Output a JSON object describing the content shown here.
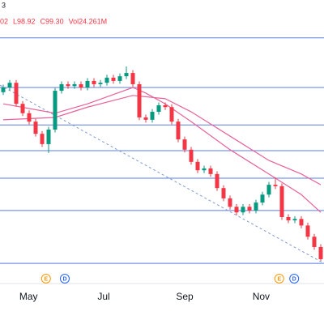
{
  "chart_data": {
    "type": "candlestick",
    "header": {
      "line1": "3",
      "items": [
        "02",
        "L98.92",
        "C99.30",
        "Vol24.261M"
      ]
    },
    "up_color": "#089981",
    "down_color": "#f23645",
    "open": [
      135.0,
      136.0,
      137.0,
      132.5,
      130.5,
      128.7,
      126.1,
      123.9,
      127.0,
      135.3,
      136.7,
      136.3,
      136.7,
      136.0,
      137.4,
      136.7,
      137.0,
      138.1,
      137.4,
      138.4,
      139.1,
      136.7,
      129.6,
      129.1,
      130.8,
      132.2,
      131.8,
      128.7,
      124.9,
      122.7,
      120.1,
      118.3,
      118.7,
      117.5,
      114.5,
      112.3,
      110.5,
      109.3,
      110.5,
      109.7,
      111.4,
      113.1,
      115.2,
      114.9,
      108.3,
      107.6,
      107.9,
      106.5,
      104.1,
      101.9
    ],
    "high": [
      136.6,
      137.6,
      137.6,
      133.1,
      131.1,
      129.3,
      126.7,
      127.6,
      135.9,
      137.3,
      137.3,
      137.3,
      137.3,
      138.0,
      138.0,
      137.6,
      138.7,
      138.7,
      139.0,
      140.5,
      139.7,
      137.3,
      130.2,
      131.4,
      132.8,
      132.8,
      132.4,
      129.3,
      125.5,
      123.3,
      120.7,
      119.3,
      119.3,
      118.1,
      115.1,
      112.9,
      111.1,
      111.1,
      111.1,
      112.0,
      113.7,
      115.8,
      116.8,
      115.5,
      108.9,
      108.5,
      108.5,
      107.1,
      104.7,
      102.5
    ],
    "low": [
      134.4,
      135.4,
      131.9,
      129.9,
      128.1,
      125.5,
      123.3,
      122.0,
      126.4,
      134.7,
      135.7,
      135.7,
      135.4,
      135.4,
      136.1,
      136.1,
      136.4,
      136.8,
      136.8,
      137.8,
      136.1,
      129.0,
      128.5,
      128.5,
      130.2,
      131.2,
      128.1,
      124.3,
      122.1,
      119.5,
      117.7,
      117.7,
      116.9,
      113.9,
      111.7,
      109.9,
      108.7,
      108.7,
      109.1,
      109.1,
      110.8,
      112.5,
      114.3,
      107.7,
      107.0,
      107.0,
      105.9,
      103.5,
      101.3,
      98.92
    ],
    "close": [
      136.0,
      137.0,
      132.5,
      130.5,
      128.7,
      126.1,
      123.9,
      127.0,
      135.3,
      136.7,
      136.3,
      136.7,
      136.0,
      137.4,
      136.7,
      137.0,
      138.1,
      137.4,
      138.4,
      139.1,
      136.7,
      129.6,
      129.1,
      130.8,
      132.2,
      131.8,
      128.7,
      124.9,
      122.7,
      120.1,
      118.3,
      118.7,
      117.5,
      114.5,
      112.3,
      110.5,
      109.3,
      110.5,
      109.7,
      111.4,
      113.1,
      115.2,
      114.9,
      108.3,
      107.6,
      107.9,
      106.5,
      104.1,
      101.9,
      99.3
    ],
    "overlays": [
      {
        "color": "#e8619a",
        "x": [
          0,
          8,
          13,
          20,
          22,
          25,
          29,
          35,
          41,
          46,
          49
        ],
        "values": [
          132.5,
          130.5,
          132.5,
          136.0,
          134.8,
          132.5,
          128.7,
          122.7,
          117.5,
          113.1,
          109.3
        ]
      },
      {
        "color": "#e8619a",
        "x": [
          0,
          8,
          13,
          20,
          25,
          29,
          35,
          41,
          46,
          49
        ],
        "values": [
          129.1,
          129.6,
          131.8,
          134.3,
          133.6,
          130.8,
          125.6,
          120.4,
          117.5,
          115.2
        ]
      }
    ],
    "trendline": {
      "color": "#7f9bd0",
      "x": [
        -0.5,
        49.5
      ],
      "values": [
        136.5,
        98.4
      ]
    },
    "levels": [
      146.6,
      136.0,
      128.0,
      122.5,
      116.6,
      109.7,
      98.4
    ],
    "level_color": "#5b7ee5",
    "xlim": [
      -0.5,
      49.5
    ],
    "ylim": [
      94.1,
      154.7
    ],
    "xticks": [
      {
        "value": 3.9,
        "label": "May"
      },
      {
        "value": 15.5,
        "label": "Jul"
      },
      {
        "value": 28,
        "label": "Sep"
      },
      {
        "value": 39.8,
        "label": "Nov"
      }
    ],
    "events": [
      {
        "x": 6.6,
        "label": "E",
        "color": "#ff9800"
      },
      {
        "x": 9.5,
        "label": "D",
        "color": "#2962ff"
      },
      {
        "x": 42.6,
        "label": "E",
        "color": "#ff9800"
      },
      {
        "x": 44.9,
        "label": "D",
        "color": "#2962ff"
      }
    ]
  }
}
